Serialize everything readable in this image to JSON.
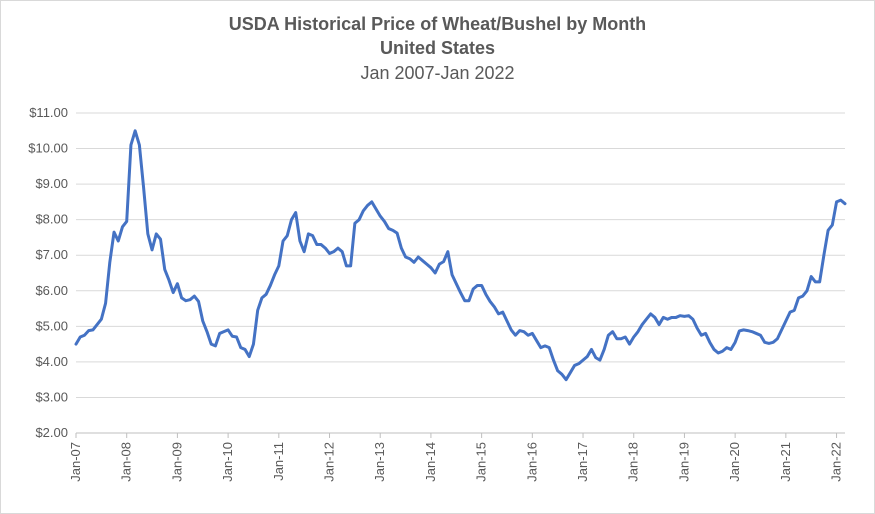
{
  "chart_data": {
    "type": "line",
    "title": "USDA Historical Price of Wheat/Bushel by Month",
    "subtitle": "United States",
    "date_range": "Jan 2007-Jan 2022",
    "xlabel": "",
    "ylabel": "",
    "ylim": [
      2,
      11
    ],
    "yticks": [
      2,
      3,
      4,
      5,
      6,
      7,
      8,
      9,
      10,
      11
    ],
    "ytick_labels": [
      "$2.00",
      "$3.00",
      "$4.00",
      "$5.00",
      "$6.00",
      "$7.00",
      "$8.00",
      "$9.00",
      "$10.00",
      "$11.00"
    ],
    "xtick_labels": [
      "Jan-07",
      "Jan-08",
      "Jan-09",
      "Jan-10",
      "Jan-11",
      "Jan-12",
      "Jan-13",
      "Jan-14",
      "Jan-15",
      "Jan-16",
      "Jan-17",
      "Jan-18",
      "Jan-19",
      "Jan-20",
      "Jan-21",
      "Jan-22"
    ],
    "grid": true,
    "legend": "none",
    "color": "#4472c4",
    "series": [
      {
        "values": [
          4.5,
          4.7,
          4.75,
          4.88,
          4.9,
          5.05,
          5.2,
          5.65,
          6.8,
          7.65,
          7.4,
          7.8,
          7.95,
          10.1,
          10.5,
          10.1,
          8.9,
          7.6,
          7.15,
          7.6,
          7.45,
          6.6,
          6.3,
          5.95,
          6.2,
          5.8,
          5.72,
          5.75,
          5.85,
          5.7,
          5.15,
          4.85,
          4.5,
          4.45,
          4.8,
          4.85,
          4.9,
          4.72,
          4.7,
          4.4,
          4.35,
          4.15,
          4.5,
          5.45,
          5.8,
          5.9,
          6.15,
          6.45,
          6.7,
          7.4,
          7.55,
          8.0,
          8.2,
          7.4,
          7.1,
          7.6,
          7.55,
          7.3,
          7.3,
          7.2,
          7.05,
          7.1,
          7.2,
          7.1,
          6.7,
          6.7,
          7.9,
          8.0,
          8.25,
          8.4,
          8.5,
          8.3,
          8.1,
          7.95,
          7.75,
          7.7,
          7.62,
          7.2,
          6.95,
          6.9,
          6.8,
          6.95,
          6.85,
          6.75,
          6.65,
          6.5,
          6.75,
          6.82,
          7.1,
          6.45,
          6.2,
          5.95,
          5.72,
          5.72,
          6.05,
          6.15,
          6.15,
          5.9,
          5.7,
          5.55,
          5.35,
          5.4,
          5.15,
          4.9,
          4.75,
          4.88,
          4.85,
          4.75,
          4.8,
          4.6,
          4.4,
          4.45,
          4.4,
          4.05,
          3.75,
          3.65,
          3.5,
          3.7,
          3.9,
          3.95,
          4.05,
          4.15,
          4.35,
          4.12,
          4.05,
          4.35,
          4.75,
          4.85,
          4.65,
          4.65,
          4.7,
          4.5,
          4.7,
          4.85,
          5.05,
          5.2,
          5.35,
          5.25,
          5.05,
          5.25,
          5.2,
          5.25,
          5.25,
          5.3,
          5.28,
          5.3,
          5.2,
          4.95,
          4.75,
          4.8,
          4.55,
          4.35,
          4.25,
          4.3,
          4.4,
          4.35,
          4.55,
          4.87,
          4.9,
          4.88,
          4.85,
          4.8,
          4.75,
          4.55,
          4.52,
          4.55,
          4.65,
          4.9,
          5.15,
          5.4,
          5.45,
          5.8,
          5.85,
          6.0,
          6.4,
          6.25,
          6.25,
          7.0,
          7.7,
          7.85,
          8.5,
          8.55,
          8.45
        ]
      }
    ]
  }
}
